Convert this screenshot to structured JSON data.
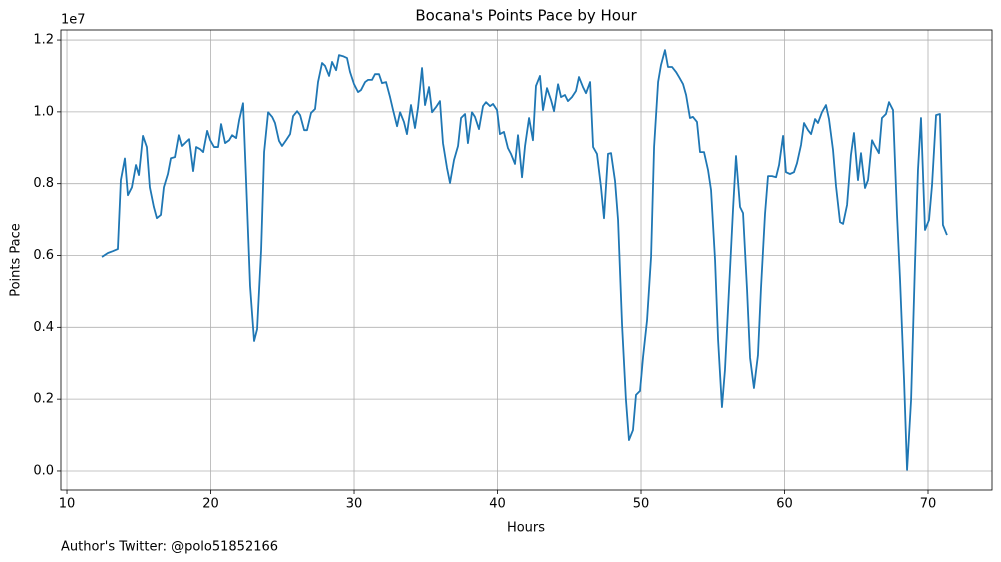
{
  "chart_data": {
    "type": "line",
    "title": "Bocana's Points Pace by Hour",
    "x_label": "Hours",
    "y_label": "Points Pace",
    "y_offset_label": "1e7",
    "footnote": "Author's Twitter: @polo51852166",
    "grid": true,
    "xlim": [
      9.58,
      74.46
    ],
    "xticks": [
      10,
      20,
      30,
      40,
      50,
      60,
      70
    ],
    "ylim": [
      -0.053,
      1.228
    ],
    "yticks": [
      {
        "value": 0,
        "label": "0.0"
      },
      0.2,
      0.4,
      0.6,
      0.8,
      {
        "value": 1,
        "label": "1.0"
      },
      1.2
    ],
    "x": [
      12.44,
      12.86,
      13.2,
      13.55,
      13.76,
      14.04,
      14.25,
      14.53,
      14.81,
      15.02,
      15.3,
      15.57,
      15.78,
      16.06,
      16.27,
      16.55,
      16.76,
      17.04,
      17.25,
      17.53,
      17.8,
      18.01,
      18.29,
      18.5,
      18.78,
      18.99,
      19.27,
      19.48,
      19.76,
      19.97,
      20.24,
      20.52,
      20.73,
      21.01,
      21.29,
      21.5,
      21.78,
      21.99,
      22.26,
      22.47,
      22.75,
      23.03,
      23.24,
      23.52,
      23.73,
      24.01,
      24.29,
      24.49,
      24.77,
      24.98,
      25.26,
      25.54,
      25.75,
      26.03,
      26.24,
      26.52,
      26.72,
      27.0,
      27.28,
      27.49,
      27.77,
      27.98,
      28.26,
      28.47,
      28.75,
      28.95,
      29.23,
      29.51,
      29.72,
      30.0,
      30.28,
      30.49,
      30.77,
      30.98,
      31.25,
      31.46,
      31.74,
      31.95,
      32.23,
      32.51,
      32.72,
      33.0,
      33.21,
      33.48,
      33.69,
      33.97,
      34.25,
      34.46,
      34.74,
      34.95,
      35.23,
      35.44,
      35.71,
      35.99,
      36.2,
      36.48,
      36.69,
      36.97,
      37.25,
      37.46,
      37.74,
      37.94,
      38.22,
      38.43,
      38.71,
      38.99,
      39.2,
      39.48,
      39.69,
      39.97,
      40.17,
      40.45,
      40.73,
      40.94,
      41.22,
      41.43,
      41.71,
      41.92,
      42.2,
      42.47,
      42.68,
      42.96,
      43.17,
      43.45,
      43.73,
      43.94,
      44.22,
      44.43,
      44.7,
      44.91,
      45.19,
      45.47,
      45.68,
      45.96,
      46.17,
      46.45,
      46.66,
      46.93,
      47.21,
      47.42,
      47.7,
      47.91,
      48.19,
      48.4,
      48.68,
      48.95,
      49.16,
      49.44,
      49.65,
      49.93,
      50.14,
      50.42,
      50.7,
      50.91,
      51.19,
      51.39,
      51.67,
      51.88,
      52.16,
      52.44,
      52.65,
      52.93,
      53.14,
      53.41,
      53.62,
      53.9,
      54.11,
      54.39,
      54.67,
      54.88,
      55.16,
      55.37,
      55.64,
      55.85,
      56.13,
      56.41,
      56.62,
      56.9,
      57.11,
      57.39,
      57.6,
      57.87,
      58.15,
      58.36,
      58.64,
      58.85,
      59.13,
      59.41,
      59.62,
      59.9,
      60.1,
      60.38,
      60.66,
      60.87,
      61.15,
      61.36,
      61.64,
      61.85,
      62.13,
      62.33,
      62.61,
      62.89,
      63.1,
      63.38,
      63.59,
      63.87,
      64.08,
      64.36,
      64.63,
      64.84,
      65.12,
      65.33,
      65.61,
      65.82,
      66.1,
      66.3,
      66.58,
      66.79,
      67.07,
      67.28,
      67.56,
      67.84,
      68.05,
      68.33,
      68.54,
      68.82,
      69.09,
      69.3,
      69.51,
      69.79,
      70.07,
      70.28,
      70.56,
      70.83,
      71.04,
      71.32
    ],
    "series": [
      {
        "color": "#1f77b4",
        "values": [
          0.596,
          0.607,
          0.612,
          0.618,
          0.81,
          0.87,
          0.768,
          0.79,
          0.852,
          0.824,
          0.933,
          0.902,
          0.79,
          0.735,
          0.704,
          0.713,
          0.79,
          0.827,
          0.871,
          0.874,
          0.935,
          0.905,
          0.916,
          0.924,
          0.835,
          0.902,
          0.896,
          0.888,
          0.947,
          0.921,
          0.902,
          0.902,
          0.966,
          0.913,
          0.921,
          0.935,
          0.927,
          0.977,
          1.024,
          0.81,
          0.515,
          0.362,
          0.395,
          0.615,
          0.888,
          0.999,
          0.986,
          0.969,
          0.919,
          0.905,
          0.921,
          0.938,
          0.988,
          1.002,
          0.991,
          0.949,
          0.949,
          0.997,
          1.008,
          1.083,
          1.136,
          1.128,
          1.1,
          1.139,
          1.116,
          1.158,
          1.155,
          1.15,
          1.111,
          1.077,
          1.055,
          1.061,
          1.083,
          1.089,
          1.089,
          1.105,
          1.105,
          1.08,
          1.083,
          1.041,
          1.005,
          0.96,
          0.999,
          0.972,
          0.938,
          1.019,
          0.955,
          1.011,
          1.122,
          1.019,
          1.069,
          0.999,
          1.013,
          1.03,
          0.913,
          0.844,
          0.802,
          0.866,
          0.905,
          0.983,
          0.994,
          0.913,
          0.999,
          0.986,
          0.952,
          1.016,
          1.027,
          1.016,
          1.022,
          1.005,
          0.938,
          0.944,
          0.899,
          0.883,
          0.855,
          0.935,
          0.818,
          0.905,
          0.983,
          0.921,
          1.072,
          1.1,
          1.005,
          1.066,
          1.033,
          1.002,
          1.077,
          1.041,
          1.047,
          1.03,
          1.041,
          1.058,
          1.097,
          1.069,
          1.052,
          1.083,
          0.902,
          0.883,
          0.791,
          0.704,
          0.883,
          0.885,
          0.807,
          0.699,
          0.406,
          0.198,
          0.086,
          0.114,
          0.212,
          0.223,
          0.317,
          0.42,
          0.596,
          0.902,
          1.083,
          1.13,
          1.172,
          1.125,
          1.125,
          1.111,
          1.097,
          1.077,
          1.047,
          0.983,
          0.986,
          0.972,
          0.888,
          0.888,
          0.838,
          0.782,
          0.587,
          0.365,
          0.178,
          0.281,
          0.504,
          0.727,
          0.877,
          0.735,
          0.718,
          0.504,
          0.315,
          0.231,
          0.323,
          0.509,
          0.715,
          0.821,
          0.821,
          0.818,
          0.852,
          0.933,
          0.832,
          0.827,
          0.832,
          0.857,
          0.908,
          0.969,
          0.949,
          0.938,
          0.98,
          0.969,
          0.999,
          1.019,
          0.98,
          0.894,
          0.793,
          0.693,
          0.688,
          0.741,
          0.88,
          0.941,
          0.81,
          0.885,
          0.788,
          0.81,
          0.921,
          0.905,
          0.885,
          0.983,
          0.994,
          1.027,
          1.005,
          0.713,
          0.532,
          0.253,
          0.003,
          0.198,
          0.573,
          0.838,
          0.983,
          0.671,
          0.699,
          0.796,
          0.991,
          0.994,
          0.685,
          0.657
        ]
      }
    ]
  }
}
